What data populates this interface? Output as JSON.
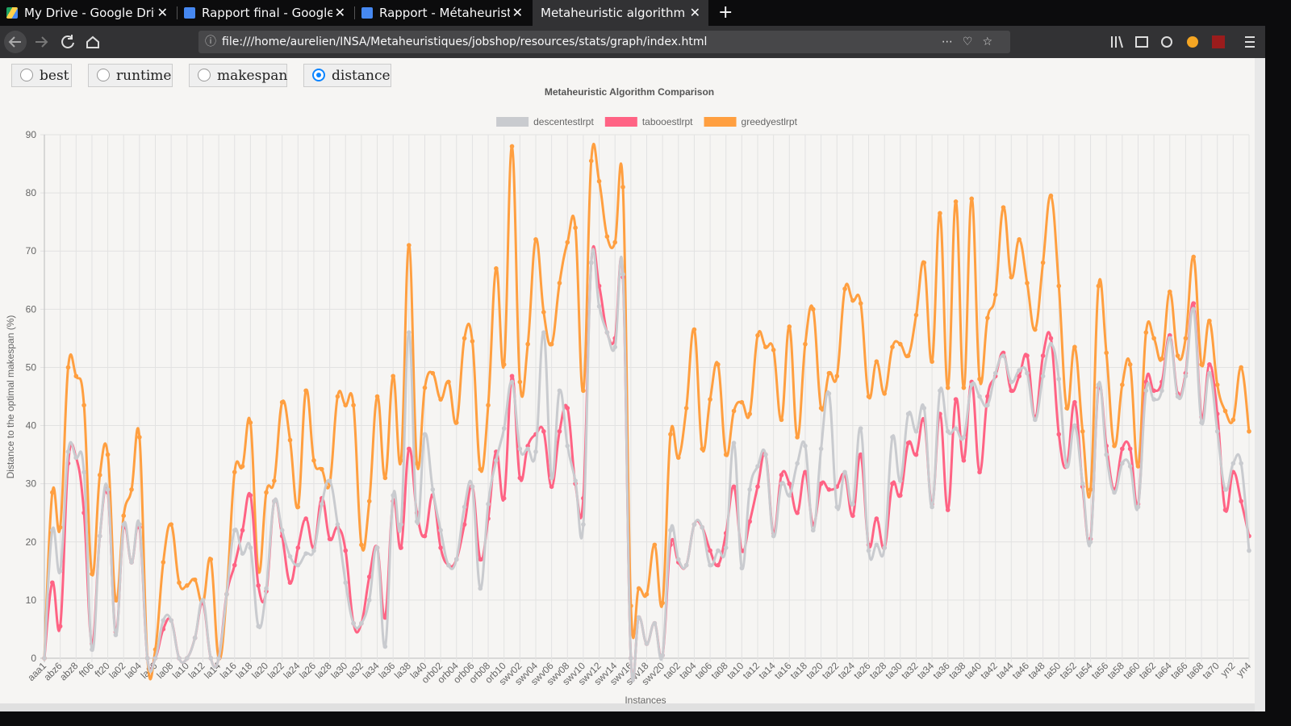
{
  "browser": {
    "tabs": [
      {
        "title": "My Drive - Google Drive"
      },
      {
        "title": "Rapport final - Google Do"
      },
      {
        "title": "Rapport - Métaheuristiqu"
      },
      {
        "title": "Metaheuristic algorithms gra"
      }
    ],
    "url": "file:///home/aurelien/INSA/Metaheuristiques/jobshop/resources/stats/graph/index.html"
  },
  "controls": {
    "options": [
      "best",
      "runtime",
      "makespan",
      "distance"
    ],
    "selected": "distance"
  },
  "chart_data": {
    "type": "line",
    "title": "Metaheuristic Algorithm Comparison",
    "x_label": "Instances",
    "y_label": "Distance to the optimal makespan (%)",
    "legend": "top",
    "grid": true,
    "ylim": [
      0,
      90
    ],
    "yticks": [
      0,
      10,
      20,
      30,
      40,
      50,
      60,
      70,
      80,
      90
    ],
    "categories": [
      "aaa1",
      null,
      "abz6",
      null,
      "abz8",
      null,
      "ft06",
      null,
      "ft20",
      null,
      "la02",
      null,
      "la04",
      null,
      "la06",
      null,
      "la08",
      null,
      "la10",
      null,
      "la12",
      null,
      "la14",
      null,
      "la16",
      null,
      "la18",
      null,
      "la20",
      null,
      "la22",
      null,
      "la24",
      null,
      "la26",
      null,
      "la28",
      null,
      "la30",
      null,
      "la32",
      null,
      "la34",
      null,
      "la36",
      null,
      "la38",
      null,
      "la40",
      null,
      "orb02",
      null,
      "orb04",
      null,
      "orb06",
      null,
      "orb08",
      null,
      "orb10",
      null,
      "swv02",
      null,
      "swv04",
      null,
      "swv06",
      null,
      "swv08",
      null,
      "swv10",
      null,
      "swv12",
      null,
      "swv14",
      null,
      "swv16",
      null,
      "swv18",
      null,
      "swv20",
      null,
      "ta02",
      null,
      "ta04",
      null,
      "ta06",
      null,
      "ta08",
      null,
      "ta10",
      null,
      "ta12",
      null,
      "ta14",
      null,
      "ta16",
      null,
      "ta18",
      null,
      "ta20",
      null,
      "ta22",
      null,
      "ta24",
      null,
      "ta26",
      null,
      "ta28",
      null,
      "ta30",
      null,
      "ta32",
      null,
      "ta34",
      null,
      "ta36",
      null,
      "ta38",
      null,
      "ta40",
      null,
      "ta42",
      null,
      "ta44",
      null,
      "ta46",
      null,
      "ta48",
      null,
      "ta50",
      null,
      "ta52",
      null,
      "ta54",
      null,
      "ta56",
      null,
      "ta58",
      null,
      "ta60",
      null,
      "ta62",
      null,
      "ta64",
      null,
      "ta66",
      null,
      "ta68",
      null,
      "ta70",
      null,
      "yn2",
      null,
      "yn4"
    ],
    "series": [
      {
        "name": "descentestlrpt",
        "color": "#c9cbcf",
        "values": [
          0,
          22,
          15,
          35.5,
          34.5,
          32,
          1.5,
          21,
          29,
          4,
          23,
          16.5,
          23,
          0,
          0,
          6.5,
          6.5,
          0,
          0,
          3.5,
          10,
          0,
          0,
          11,
          22,
          18,
          19,
          5.5,
          12,
          27,
          22,
          17.5,
          16,
          18,
          18.5,
          26.5,
          30.5,
          23,
          13,
          6,
          6,
          10,
          19,
          2,
          28,
          23,
          56,
          23.5,
          38.5,
          29,
          22,
          16,
          17,
          26,
          29.5,
          12,
          26.5,
          34,
          39.5,
          47.5,
          36,
          36,
          35.5,
          56,
          31,
          46,
          36.5,
          30.5,
          23,
          68,
          60.5,
          56,
          53.5,
          66,
          0,
          7,
          2.5,
          6,
          0.5,
          22,
          17,
          16,
          23,
          22.5,
          16,
          18.5,
          19,
          37,
          15.5,
          29,
          33,
          35,
          21,
          30,
          28,
          33.5,
          36.5,
          22,
          36,
          45.5,
          26,
          32,
          26.5,
          39.5,
          18.5,
          19.5,
          19,
          38,
          30.5,
          42,
          39,
          43,
          26,
          46,
          39,
          39.5,
          38,
          47,
          45,
          43.5,
          49,
          52,
          47.5,
          49.5,
          49,
          41,
          48.5,
          54,
          48,
          33,
          40,
          30,
          20,
          47,
          35,
          28.5,
          33.5,
          33,
          26,
          46,
          44.5,
          46,
          55,
          45,
          48.5,
          60,
          40.5,
          49,
          39,
          29,
          33.5,
          33.5,
          18.5
        ]
      },
      {
        "name": "tabooestlrpt",
        "color": "#ff6384",
        "values": [
          0,
          13,
          5.5,
          33.5,
          34.5,
          25,
          2.5,
          21,
          28.5,
          4.5,
          22.5,
          16.5,
          22.5,
          0,
          0,
          5,
          6.5,
          0,
          0,
          3.5,
          9.5,
          0,
          0,
          11,
          16,
          22,
          28,
          12.5,
          11.5,
          27,
          21,
          13,
          19,
          24,
          19,
          27.5,
          20.5,
          22.5,
          18.5,
          6,
          6,
          14,
          19,
          7,
          27,
          19,
          36,
          25,
          21,
          28,
          19,
          16,
          17,
          23,
          29.5,
          17,
          24,
          35.5,
          27.5,
          48.5,
          31,
          36.5,
          38.5,
          39,
          29.5,
          39,
          43,
          30,
          27.5,
          68,
          64,
          56,
          55,
          65.5,
          0,
          7,
          2.5,
          6,
          0.5,
          19.5,
          16.5,
          16,
          23,
          22.5,
          18.5,
          16,
          21.5,
          29.5,
          18.5,
          23.5,
          29.5,
          35,
          21.5,
          31.5,
          30,
          25,
          32,
          23,
          30,
          29,
          29.5,
          31.5,
          24.5,
          35,
          19.5,
          24,
          19,
          30,
          28,
          37,
          35,
          41,
          26.5,
          42,
          25.5,
          44.5,
          34,
          47.5,
          32,
          45,
          48.5,
          52.5,
          46,
          48.5,
          52,
          41.5,
          52,
          55,
          38.5,
          33,
          44,
          29.5,
          20.5,
          46.5,
          36.5,
          29,
          36,
          36,
          26.5,
          47.5,
          46,
          47.5,
          55.5,
          45.5,
          49,
          61,
          41.5,
          50.5,
          42,
          25.5,
          32,
          27,
          21
        ]
      },
      {
        "name": "greedyestlrpt",
        "color": "#ff9f40",
        "values": [
          0,
          28.5,
          22.5,
          50,
          48.5,
          43.5,
          14.5,
          31.5,
          35,
          10,
          24.5,
          29,
          38,
          0,
          1.5,
          16.5,
          23,
          13,
          12.5,
          13.5,
          9.5,
          17,
          0,
          11,
          32,
          33,
          40.5,
          15,
          28.5,
          30.5,
          44,
          37.5,
          26,
          46,
          34,
          32.5,
          30,
          45,
          43.5,
          43.5,
          19.5,
          27,
          45,
          31,
          48.5,
          34,
          71,
          33.5,
          46.5,
          49,
          44.5,
          47.5,
          40.5,
          55,
          54.5,
          32.5,
          43.5,
          67,
          50.5,
          88,
          47.5,
          54,
          72,
          59.5,
          54,
          64.5,
          71.5,
          74,
          46,
          85.5,
          82,
          72.5,
          71.5,
          81,
          9,
          12,
          11,
          19.5,
          9.5,
          38.5,
          34.5,
          43,
          56.5,
          36,
          44.5,
          50.5,
          35,
          42.5,
          44,
          42,
          55.5,
          53.5,
          53,
          41,
          57,
          38,
          54,
          60,
          43,
          49,
          48.5,
          63.5,
          61.5,
          61,
          45,
          51,
          45.5,
          53.5,
          54,
          52,
          59,
          68,
          51,
          76.5,
          46.5,
          78.5,
          46.5,
          79,
          48,
          58.5,
          62.5,
          77.5,
          65.5,
          72,
          64.5,
          56.5,
          68,
          79.5,
          64,
          43,
          53.5,
          39,
          29,
          64,
          52.5,
          36.5,
          47,
          50.5,
          33,
          56,
          55,
          51.5,
          63,
          52,
          55,
          69,
          50.5,
          58,
          47,
          42.5,
          41,
          50,
          39
        ]
      }
    ]
  }
}
